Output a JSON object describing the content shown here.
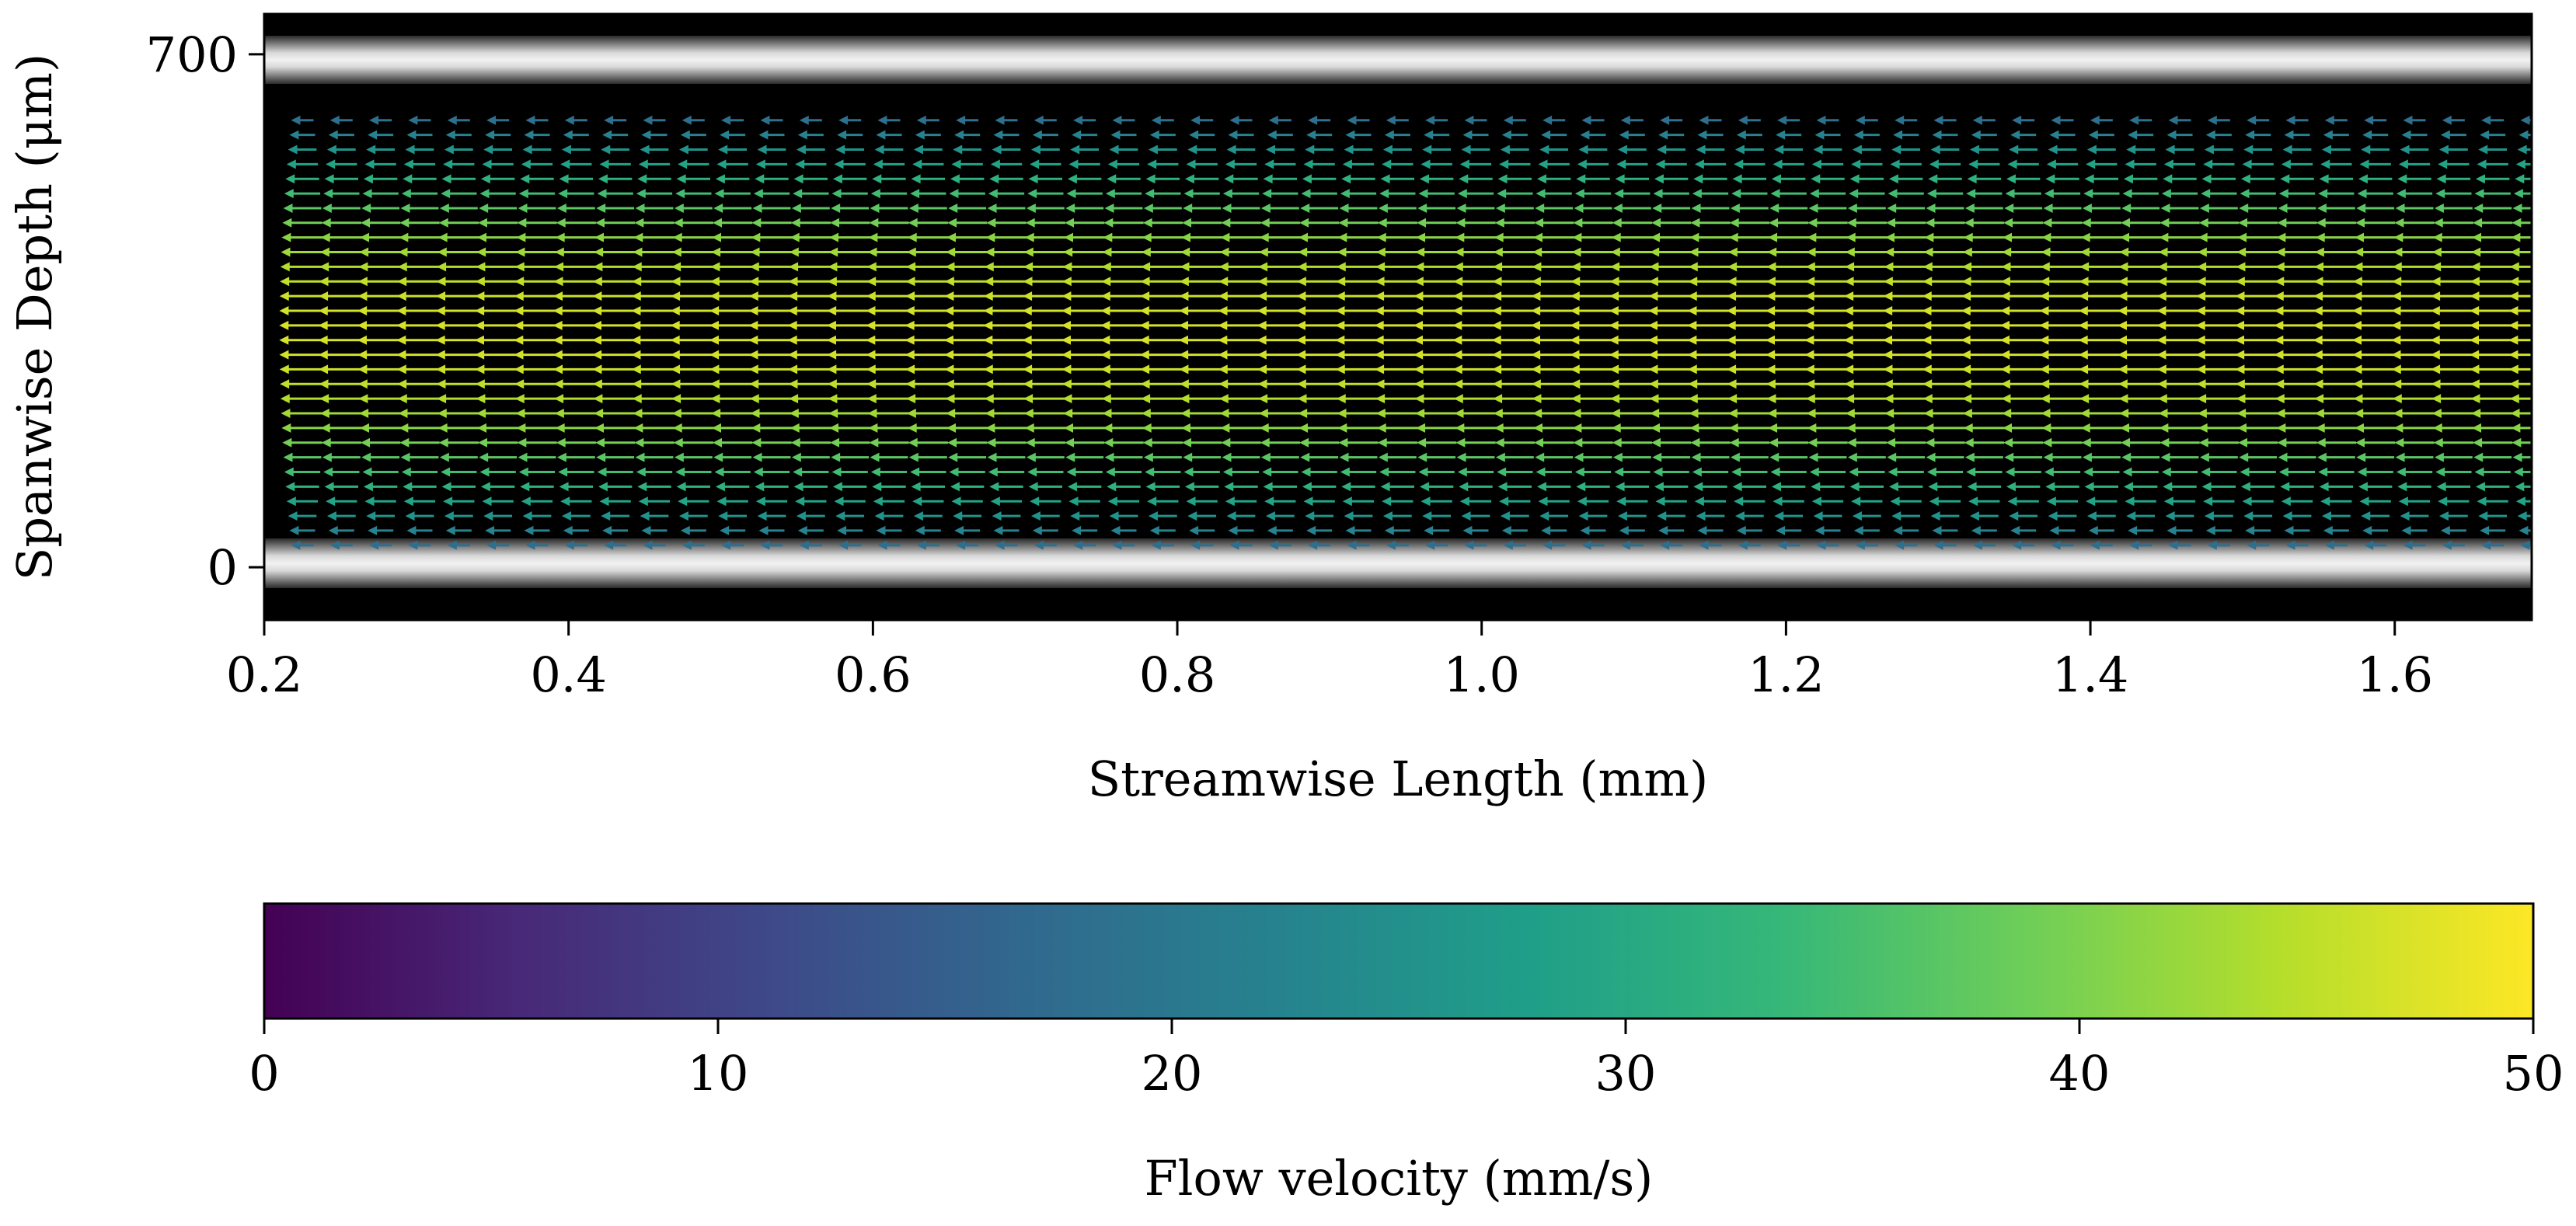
{
  "chart_data": [
    {
      "type": "quiver",
      "xlabel": "Streamwise Length (mm)",
      "ylabel": "Spanwise Depth (μm)",
      "xlim": [
        0.2,
        1.69
      ],
      "ylim": [
        755,
        -72
      ],
      "xticks": [
        0.2,
        0.4,
        0.6,
        0.8,
        1.0,
        1.2,
        1.4,
        1.6
      ],
      "xtick_labels": [
        "0.2",
        "0.4",
        "0.6",
        "0.8",
        "1.0",
        "1.2",
        "1.4",
        "1.6"
      ],
      "yticks": [
        0,
        700
      ],
      "ytick_labels": [
        "0",
        "700"
      ],
      "background": "grayscale micrograph of channel (black interior, bright walls)",
      "walls": [
        {
          "name": "top wall",
          "depth": -10
        },
        {
          "name": "bottom wall",
          "depth": 680
        }
      ],
      "vector_field": {
        "direction": "leftward (negative streamwise)",
        "column_x_start": 0.225,
        "column_x_end": 1.69,
        "column_count": 58,
        "depth_start": 30,
        "depth_end": 610,
        "rows_per_column": 30,
        "profile": "parabolic (Poiseuille), max at channel center",
        "max_velocity": 47,
        "min_velocity": 14,
        "center_depth": 320
      },
      "grid": false
    },
    {
      "type": "colorbar",
      "colormap": "viridis",
      "label": "Flow velocity (mm/s)",
      "range": [
        0,
        50
      ],
      "ticks": [
        0,
        10,
        20,
        30,
        40,
        50
      ],
      "tick_labels": [
        "0",
        "10",
        "20",
        "30",
        "40",
        "50"
      ],
      "colors": [
        "#440154",
        "#482878",
        "#3e4989",
        "#31688e",
        "#26828e",
        "#1f9e89",
        "#35b779",
        "#6ece58",
        "#b5de2b",
        "#fde725"
      ]
    }
  ]
}
